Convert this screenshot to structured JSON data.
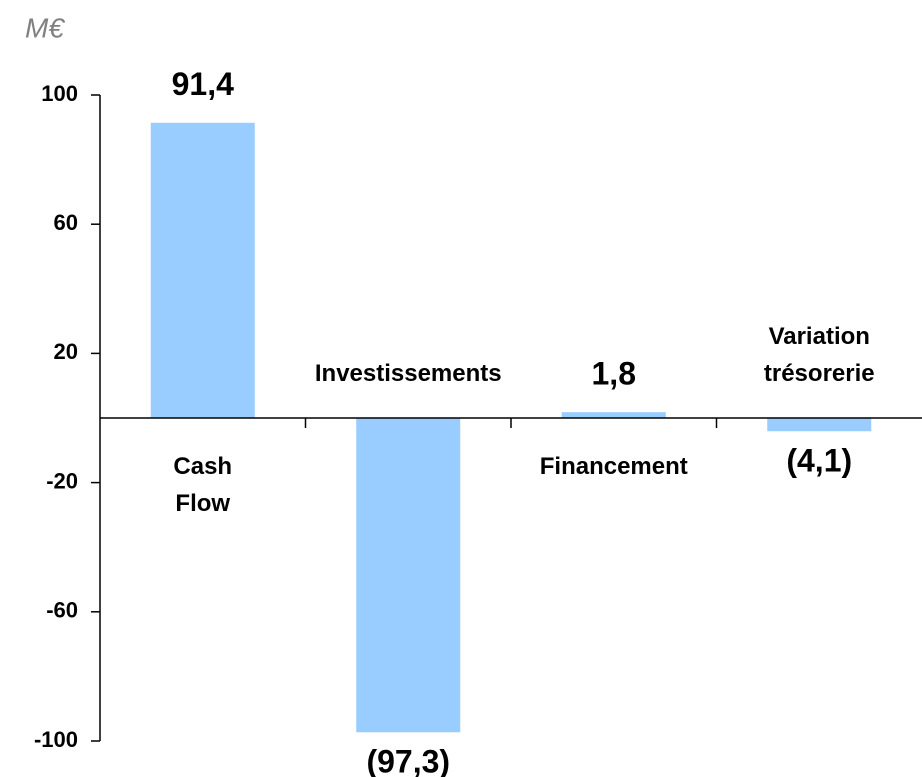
{
  "chart_data": {
    "type": "bar",
    "y_label": "M€",
    "categories": [
      "Cash Flow",
      "Investissements",
      "Financement",
      "Variation trésorerie"
    ],
    "values": [
      91.4,
      -97.3,
      1.8,
      -4.1
    ],
    "value_labels": [
      "91,4",
      "(97,3)",
      "1,8",
      "(4,1)"
    ],
    "color": "#99ccff",
    "ylim": [
      -100,
      100
    ],
    "yticks": [
      -100,
      -60,
      -20,
      20,
      60,
      100
    ],
    "grid": false
  }
}
